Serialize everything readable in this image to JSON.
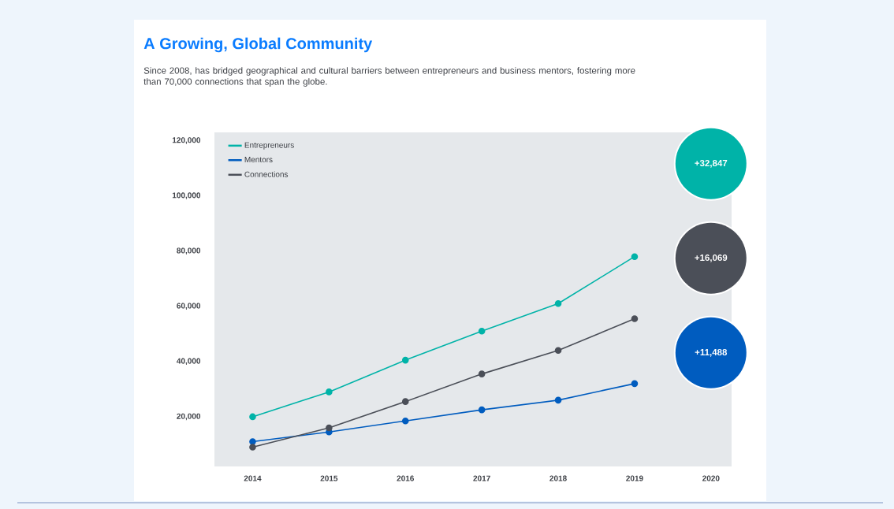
{
  "chart_data": {
    "type": "line",
    "title": "A Growing, Global Community",
    "subtitle": "Since 2008, has bridged geographical and cultural barriers between entrepreneurs and business mentors, fostering more than 70,000 connections that span the globe.",
    "x": [
      2014,
      2015,
      2016,
      2017,
      2018,
      2019
    ],
    "series": [
      {
        "name": "Entrepreneurs",
        "color": "#00b3a8",
        "values": [
          20000,
          29000,
          40500,
          51000,
          61000,
          78000
        ]
      },
      {
        "name": "Mentors",
        "color": "#005cbf",
        "values": [
          11000,
          14500,
          18500,
          22500,
          26000,
          32000
        ]
      },
      {
        "name": "Connections",
        "color": "#4b4f58",
        "values": [
          9000,
          16000,
          25500,
          35500,
          44000,
          55500
        ]
      }
    ],
    "xlim": [
      2013.5,
      2020.27
    ],
    "ylim": [
      2000,
      123000
    ],
    "xticks": [
      2014,
      2015,
      2016,
      2017,
      2018,
      2019,
      2020
    ],
    "yticks": [
      {
        "value": 20000,
        "label": "20,000"
      },
      {
        "value": 40000,
        "label": "40,000"
      },
      {
        "value": 60000,
        "label": "60,000"
      },
      {
        "value": 80000,
        "label": "80,000"
      },
      {
        "value": 100000,
        "label": "100,000"
      },
      {
        "value": 120000,
        "label": "120,000"
      }
    ],
    "annotations": [
      "+32,847",
      "+11,488",
      "+16,069"
    ],
    "legend": "top left",
    "marker": "circle",
    "line_style": "solid",
    "grid": false
  }
}
